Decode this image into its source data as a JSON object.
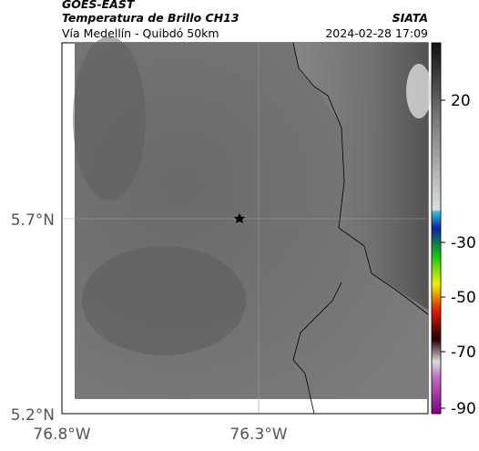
{
  "header": {
    "source": "GOES-EAST",
    "title": "Temperatura de Brillo CH13",
    "agency": "SIATA",
    "subtitle": "Vía Medellín - Quibdó 50km",
    "datetime": "2024-02-28 17:09"
  },
  "map": {
    "lat_labels": [
      "5.7°N",
      "5.2°N"
    ],
    "lon_labels": [
      "76.8°W",
      "76.3°W"
    ]
  },
  "colorbar": {
    "ticks": [
      20,
      -30,
      -50,
      -70,
      -90
    ]
  }
}
